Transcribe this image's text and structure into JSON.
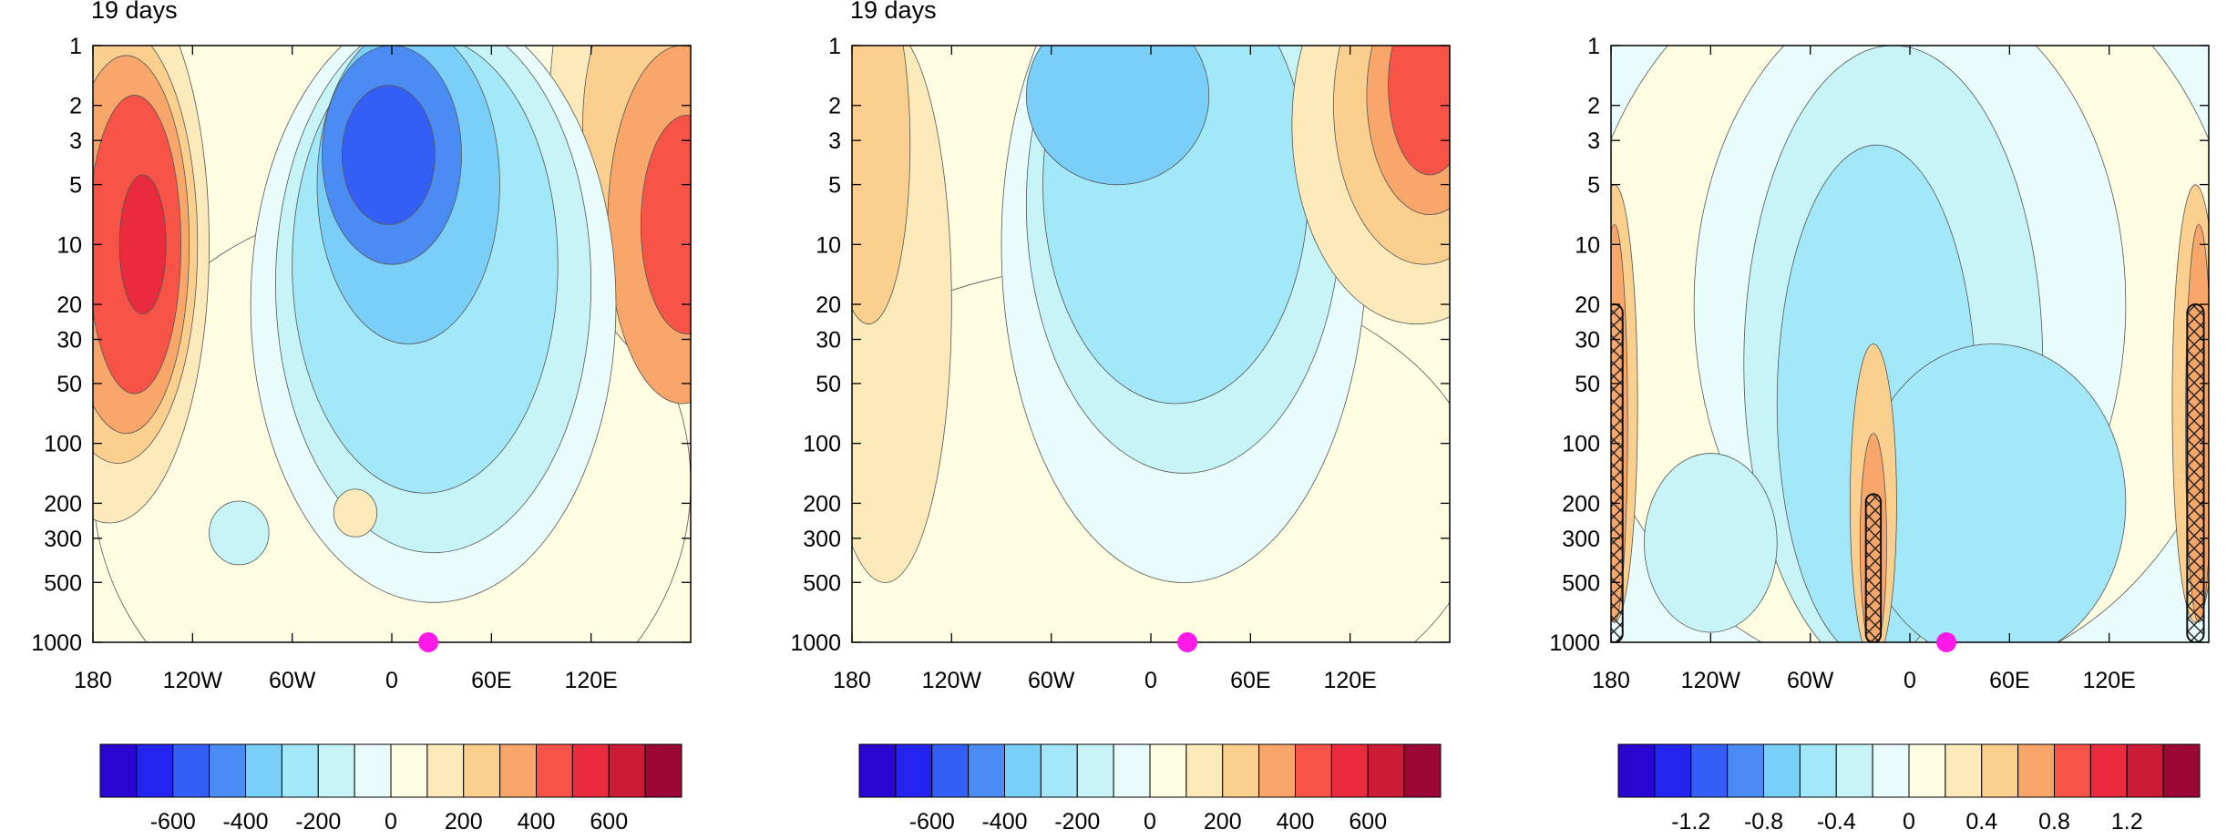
{
  "palette": [
    "#2a06d2",
    "#2424f0",
    "#335ff6",
    "#4b8cf4",
    "#79cff7",
    "#a3e8f9",
    "#c6f4f7",
    "#e9fdfd",
    "#fffde2",
    "#fdeabb",
    "#fbcf8e",
    "#f8a66a",
    "#f75346",
    "#ea2a3d",
    "#cc1b37",
    "#9d0735"
  ],
  "panels": [
    {
      "title": "19 days",
      "chart_data": {
        "type": "heatmap",
        "xlim": [
          -180,
          180
        ],
        "xticks": [
          -180,
          -120,
          -60,
          0,
          60,
          120
        ],
        "xticklabels": [
          "180",
          "120W",
          "60W",
          "0",
          "60E",
          "120E"
        ],
        "ylim": [
          1000,
          1
        ],
        "yscale": "log",
        "yticks": [
          1,
          2,
          3,
          5,
          10,
          20,
          30,
          50,
          100,
          200,
          300,
          500,
          1000
        ],
        "yticklabels": [
          "1",
          "2",
          "3",
          "5",
          "10",
          "20",
          "30",
          "50",
          "100",
          "200",
          "300",
          "500",
          "1000"
        ],
        "colorbar": {
          "levels": [
            -700,
            -600,
            -500,
            -400,
            -300,
            -200,
            -100,
            0,
            100,
            200,
            300,
            400,
            500,
            600,
            700
          ],
          "ticklabels": [
            "-600",
            "-400",
            "-200",
            "0",
            "200",
            "400",
            "600"
          ]
        },
        "marker": {
          "lon": 22,
          "p": 1000,
          "color": "#ff19e6"
        }
      }
    },
    {
      "title": "19 days",
      "chart_data": {
        "type": "heatmap",
        "xlim": [
          -180,
          180
        ],
        "xticks": [
          -180,
          -120,
          -60,
          0,
          60,
          120
        ],
        "xticklabels": [
          "180",
          "120W",
          "60W",
          "0",
          "60E",
          "120E"
        ],
        "ylim": [
          1000,
          1
        ],
        "yscale": "log",
        "yticks": [
          1,
          2,
          3,
          5,
          10,
          20,
          30,
          50,
          100,
          200,
          300,
          500,
          1000
        ],
        "yticklabels": [
          "1",
          "2",
          "3",
          "5",
          "10",
          "20",
          "30",
          "50",
          "100",
          "200",
          "300",
          "500",
          "1000"
        ],
        "colorbar": {
          "levels": [
            -700,
            -600,
            -500,
            -400,
            -300,
            -200,
            -100,
            0,
            100,
            200,
            300,
            400,
            500,
            600,
            700
          ],
          "ticklabels": [
            "-600",
            "-400",
            "-200",
            "0",
            "200",
            "400",
            "600"
          ]
        },
        "marker": {
          "lon": 22,
          "p": 1000,
          "color": "#ff19e6"
        }
      }
    },
    {
      "title": "",
      "chart_data": {
        "type": "heatmap",
        "xlim": [
          -180,
          180
        ],
        "xticks": [
          -180,
          -120,
          -60,
          0,
          60,
          120
        ],
        "xticklabels": [
          "180",
          "120W",
          "60W",
          "0",
          "60E",
          "120E"
        ],
        "ylim": [
          1000,
          1
        ],
        "yscale": "log",
        "yticks": [
          1,
          2,
          3,
          5,
          10,
          20,
          30,
          50,
          100,
          200,
          300,
          500,
          1000
        ],
        "yticklabels": [
          "1",
          "2",
          "3",
          "5",
          "10",
          "20",
          "30",
          "50",
          "100",
          "200",
          "300",
          "500",
          "1000"
        ],
        "colorbar": {
          "levels": [
            -1.4,
            -1.2,
            -1.0,
            -0.8,
            -0.6,
            -0.4,
            -0.2,
            0,
            0.2,
            0.4,
            0.6,
            0.8,
            1.0,
            1.2,
            1.4
          ],
          "ticklabels": [
            "-1.2",
            "-0.8",
            "-0.4",
            "0",
            "0.4",
            "0.8",
            "1.2"
          ]
        },
        "hatched_regions": [
          "180 lon, 20-1000 hPa",
          "25W lon, 180-1000 hPa",
          "175E lon, 20-1000 hPa"
        ],
        "marker": {
          "lon": 22,
          "p": 1000,
          "color": "#ff19e6"
        }
      }
    }
  ]
}
